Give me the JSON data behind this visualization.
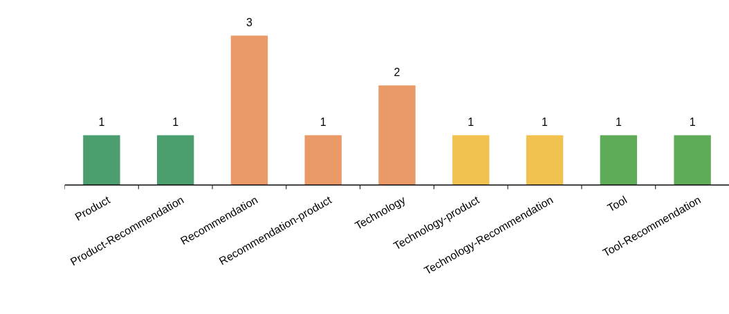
{
  "chart_data": {
    "type": "bar",
    "categories": [
      "Product",
      "Product-Recommendation",
      "Recommendation",
      "Recommendation-product",
      "Technology",
      "Technology-product",
      "Technology-Recommendation",
      "Tool",
      "Tool-Recommendation"
    ],
    "values": [
      1,
      1,
      3,
      1,
      2,
      1,
      1,
      1,
      1
    ],
    "colors": [
      "#4b9e6d",
      "#4b9e6d",
      "#e99a67",
      "#e99a67",
      "#e99a67",
      "#f2c250",
      "#f2c250",
      "#5fac58",
      "#5fac58"
    ],
    "data_labels": true,
    "tick_labels": "x"
  }
}
